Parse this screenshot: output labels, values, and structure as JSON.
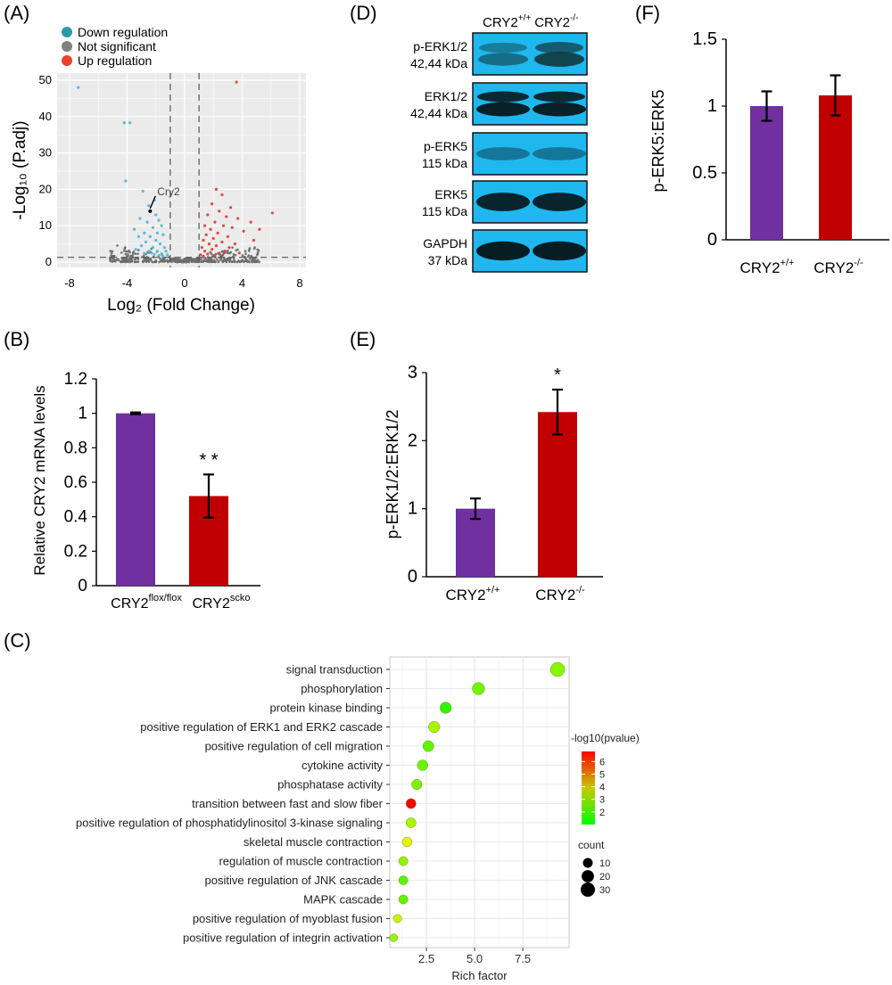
{
  "panels": {
    "a": "(A)",
    "b": "(B)",
    "c": "(C)",
    "d": "(D)",
    "e": "(E)",
    "f": "(F)"
  },
  "chart_data": [
    {
      "id": "A",
      "type": "scatter",
      "xlabel": "Log₂ (Fold Change)",
      "ylabel": "-Log₁₀ (P.adj)",
      "xlim": [
        -8,
        8
      ],
      "ylim": [
        0,
        50
      ],
      "xticks": [
        "-8",
        "-4",
        "0",
        "4",
        "8"
      ],
      "yticks": [
        "0",
        "10",
        "20",
        "30",
        "40",
        "50"
      ],
      "grid": true,
      "legend_position": "top-left",
      "legend": [
        {
          "label": "Down regulation",
          "color": "#2f9aa6"
        },
        {
          "label": "Not significant",
          "color": "#808080"
        },
        {
          "label": "Up regulation",
          "color": "#e8412c"
        }
      ],
      "point_colors": {
        "down": "#5ab7dc",
        "ns": "#6e6e6e",
        "up": "#e04a3a"
      },
      "thresholds": {
        "x": [
          -1,
          1
        ],
        "y": 1.3
      },
      "annotation": {
        "label": "Cry2",
        "x": -2.4,
        "y": 14
      },
      "points_down": [
        [
          -7.4,
          48
        ],
        [
          -4.2,
          38.3
        ],
        [
          -3.8,
          38.3
        ],
        [
          -4.1,
          22.3
        ],
        [
          -2.9,
          19.5
        ],
        [
          -2.1,
          17
        ],
        [
          -2.5,
          15.5
        ],
        [
          -2.4,
          14
        ],
        [
          -2.0,
          13
        ],
        [
          -3.1,
          12
        ],
        [
          -2.6,
          11
        ],
        [
          -1.8,
          11.5
        ],
        [
          -3.5,
          9
        ],
        [
          -2.2,
          9.5
        ],
        [
          -1.6,
          10
        ],
        [
          -2.8,
          8
        ],
        [
          -1.9,
          8
        ],
        [
          -3.2,
          7
        ],
        [
          -2.4,
          7
        ],
        [
          -1.5,
          7.5
        ],
        [
          -2.0,
          6
        ],
        [
          -2.7,
          5.5
        ],
        [
          -1.7,
          5
        ],
        [
          -3.0,
          4.5
        ],
        [
          -2.2,
          4
        ],
        [
          -1.4,
          4
        ],
        [
          -1.9,
          3
        ],
        [
          -2.5,
          3
        ],
        [
          -1.3,
          3
        ],
        [
          -1.6,
          2.2
        ],
        [
          -2.1,
          2.1
        ],
        [
          -2.8,
          2.4
        ],
        [
          -1.2,
          2
        ],
        [
          -3.4,
          3.5
        ],
        [
          -2.3,
          2.5
        ],
        [
          -1.8,
          1.8
        ],
        [
          -1.5,
          1.6
        ]
      ],
      "points_up": [
        [
          3.6,
          49.5
        ],
        [
          2.2,
          20
        ],
        [
          2.6,
          18.5
        ],
        [
          1.9,
          16
        ],
        [
          3.2,
          15
        ],
        [
          6.1,
          13.5
        ],
        [
          2.4,
          14
        ],
        [
          1.6,
          13
        ],
        [
          2.9,
          12.5
        ],
        [
          3.7,
          12
        ],
        [
          4.6,
          11
        ],
        [
          2.1,
          11
        ],
        [
          5.2,
          9
        ],
        [
          1.4,
          10
        ],
        [
          2.7,
          10
        ],
        [
          3.3,
          9.5
        ],
        [
          1.8,
          9
        ],
        [
          4.1,
          8.5
        ],
        [
          2.3,
          8
        ],
        [
          1.5,
          7.5
        ],
        [
          3.0,
          7
        ],
        [
          2.0,
          6.5
        ],
        [
          4.8,
          6
        ],
        [
          1.3,
          6
        ],
        [
          2.6,
          5.5
        ],
        [
          3.5,
          5
        ],
        [
          1.7,
          5
        ],
        [
          2.2,
          4.5
        ],
        [
          1.2,
          4
        ],
        [
          3.1,
          4
        ],
        [
          1.9,
          3.5
        ],
        [
          2.8,
          3
        ],
        [
          1.4,
          3
        ],
        [
          2.4,
          2.5
        ],
        [
          1.6,
          2.2
        ],
        [
          3.8,
          2.5
        ],
        [
          1.1,
          2
        ],
        [
          2.0,
          1.8
        ],
        [
          1.3,
          1.6
        ]
      ]
    },
    {
      "id": "B",
      "type": "bar",
      "categories": [
        "CRY2",
        "CRY2"
      ],
      "category_superscripts": [
        "flox/flox",
        "scko"
      ],
      "values": [
        1.0,
        0.52
      ],
      "errors": [
        0.005,
        0.125
      ],
      "colors": [
        "#7030a0",
        "#c00000"
      ],
      "significance": [
        "",
        "* *"
      ],
      "ylabel": "Relative CRY2 mRNA levels",
      "ylim": [
        0,
        1.2
      ],
      "yticks": [
        "0",
        "0.2",
        "0.4",
        "0.6",
        "0.8",
        "1",
        "1.2"
      ]
    },
    {
      "id": "C",
      "type": "scatter",
      "xlabel": "Rich factor",
      "xticks": [
        "2.5",
        "5.0",
        "7.5"
      ],
      "xlim": [
        0.6,
        9.9
      ],
      "grid": true,
      "color_legend": {
        "title": "-log10(pvalue)",
        "ticks": [
          "2",
          "3",
          "4",
          "5",
          "6"
        ],
        "range": [
          1,
          6.8
        ],
        "colors": [
          "#00ff00",
          "#ff0000"
        ]
      },
      "size_legend": {
        "title": "count",
        "labels": [
          "10",
          "20",
          "30"
        ],
        "values": [
          10,
          20,
          30
        ]
      },
      "terms": [
        {
          "name": "signal transduction",
          "rich": 9.3,
          "count": 30,
          "p": 2.6
        },
        {
          "name": "phosphorylation",
          "rich": 5.2,
          "count": 20,
          "p": 2.3
        },
        {
          "name": "protein kinase binding",
          "rich": 3.5,
          "count": 16,
          "p": 1.6
        },
        {
          "name": "positive regulation of ERK1 and ERK2 cascade",
          "rich": 2.9,
          "count": 16,
          "p": 3.0
        },
        {
          "name": "positive regulation of cell migration",
          "rich": 2.6,
          "count": 14,
          "p": 2.1
        },
        {
          "name": "cytokine activity",
          "rich": 2.3,
          "count": 13,
          "p": 2.2
        },
        {
          "name": "phosphatase activity",
          "rich": 2.0,
          "count": 12,
          "p": 2.4
        },
        {
          "name": "transition between fast and slow fiber",
          "rich": 1.7,
          "count": 11,
          "p": 6.7
        },
        {
          "name": "positive regulation of phosphatidylinositol 3-kinase signaling",
          "rich": 1.7,
          "count": 11,
          "p": 3.0
        },
        {
          "name": "skeletal muscle contraction",
          "rich": 1.5,
          "count": 10,
          "p": 3.7
        },
        {
          "name": "regulation of muscle contraction",
          "rich": 1.3,
          "count": 8,
          "p": 2.7
        },
        {
          "name": "positive regulation of JNK cascade",
          "rich": 1.3,
          "count": 8,
          "p": 2.0
        },
        {
          "name": "MAPK cascade",
          "rich": 1.3,
          "count": 8,
          "p": 2.1
        },
        {
          "name": "positive regulation of myoblast fusion",
          "rich": 1.0,
          "count": 6,
          "p": 3.3
        },
        {
          "name": "positive regulation of integrin activation",
          "rich": 0.8,
          "count": 5,
          "p": 2.8
        }
      ]
    },
    {
      "id": "E",
      "type": "bar",
      "categories": [
        "CRY2",
        "CRY2"
      ],
      "category_superscripts": [
        "+/+",
        "-/-"
      ],
      "values": [
        1.0,
        2.42
      ],
      "errors": [
        0.15,
        0.33
      ],
      "colors": [
        "#7030a0",
        "#c00000"
      ],
      "significance": [
        "",
        "*"
      ],
      "ylabel": "p-ERK1/2:ERK1/2",
      "ylim": [
        0,
        3
      ],
      "yticks": [
        "0",
        "1",
        "2",
        "3"
      ]
    },
    {
      "id": "F",
      "type": "bar",
      "categories": [
        "CRY2",
        "CRY2"
      ],
      "category_superscripts": [
        "+/+",
        "-/-"
      ],
      "values": [
        1.0,
        1.08
      ],
      "errors": [
        0.11,
        0.15
      ],
      "colors": [
        "#7030a0",
        "#c00000"
      ],
      "ylabel": "p-ERK5:ERK5",
      "ylim": [
        0,
        1.5
      ],
      "yticks": [
        "0",
        "0.5",
        "1",
        "1.5"
      ]
    }
  ],
  "blot": {
    "header": [
      "CRY2",
      "+/+",
      "CRY2",
      "-/-"
    ],
    "rows": [
      {
        "label1": "p-ERK1/2",
        "label2": "42,44 kDa",
        "bands": [
          0.55,
          0.85
        ]
      },
      {
        "label1": "ERK1/2",
        "label2": "42,44 kDa",
        "bands": [
          0.9,
          0.9
        ]
      },
      {
        "label1": "p-ERK5",
        "label2": "115 kDa",
        "bands": [
          0.4,
          0.4
        ]
      },
      {
        "label1": "ERK5",
        "label2": "115 kDa",
        "bands": [
          0.9,
          0.9
        ]
      },
      {
        "label1": "GAPDH",
        "label2": "37 kDa",
        "bands": [
          0.95,
          0.95
        ]
      }
    ]
  }
}
